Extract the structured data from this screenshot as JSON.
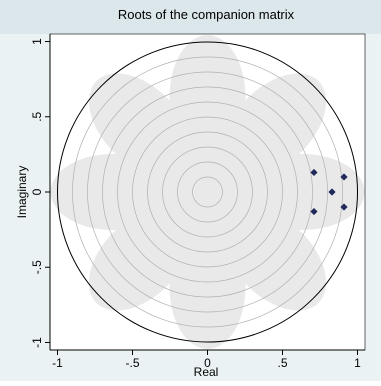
{
  "chart_data": {
    "type": "scatter",
    "title": "Roots of the companion matrix",
    "xlabel": "Real",
    "ylabel": "Imaginary",
    "xlim": [
      -1.05,
      1.05
    ],
    "ylim": [
      -1.05,
      1.05
    ],
    "x_ticks": [
      {
        "value": -1,
        "label": "-1"
      },
      {
        "value": -0.5,
        "label": "-.5"
      },
      {
        "value": 0,
        "label": "0"
      },
      {
        "value": 0.5,
        "label": ".5"
      },
      {
        "value": 1,
        "label": "1"
      }
    ],
    "y_ticks": [
      {
        "value": -1,
        "label": "-1"
      },
      {
        "value": -0.5,
        "label": "-.5"
      },
      {
        "value": 0,
        "label": "0"
      },
      {
        "value": 0.5,
        "label": ".5"
      },
      {
        "value": 1,
        "label": "1"
      }
    ],
    "unit_circle_radius": 1,
    "reference_circle_radii": [
      0.1,
      0.2,
      0.3,
      0.4,
      0.5,
      0.6,
      0.7,
      0.8,
      0.9
    ],
    "points": [
      {
        "x": 0.71,
        "y": 0.13
      },
      {
        "x": 0.91,
        "y": 0.1
      },
      {
        "x": 0.83,
        "y": 0.0
      },
      {
        "x": 0.71,
        "y": -0.13
      },
      {
        "x": 0.91,
        "y": -0.1
      }
    ],
    "grid": false,
    "legend": "none",
    "colors": {
      "marker": "#1f2a5a",
      "unit_circle": "#000000",
      "reference_circles": "#b0b0b0",
      "plot_background": "#ffffff",
      "outer_background": "#eaf2f3",
      "title_band": "#dbe7ea",
      "watermark": "#c7c7c7"
    }
  }
}
